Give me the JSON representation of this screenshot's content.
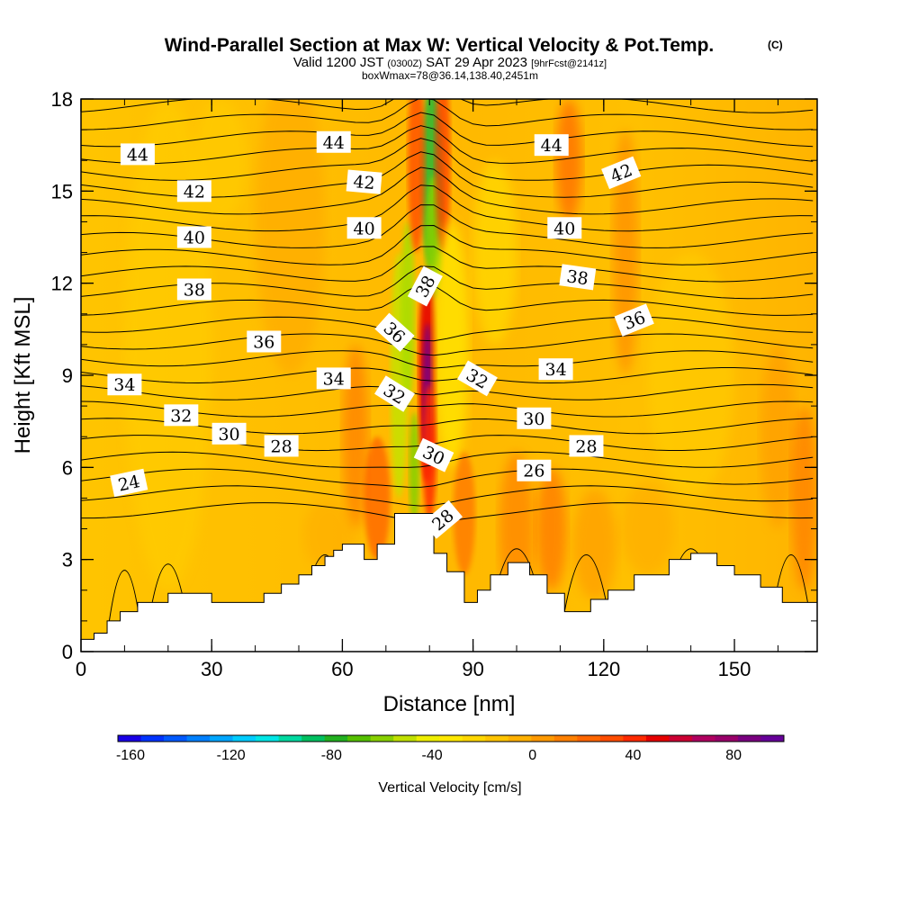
{
  "chart_data": {
    "type": "heatmap",
    "title": "Wind-Parallel Section at Max W: Vertical Velocity & Pot.Temp.",
    "title_mark": "(C)",
    "subtitle_main_a": "Valid 1200 JST",
    "subtitle_small_a": "(0300Z)",
    "subtitle_main_b": "SAT 29 Apr 2023",
    "subtitle_small_b": "[9hrFcst@2141z]",
    "subtitle2": "boxWmax=78@36.14,138.40,2451m",
    "xlabel": "Distance [nm]",
    "ylabel": "Height [Kft MSL]",
    "xlim": [
      0,
      169
    ],
    "ylim": [
      0,
      18
    ],
    "x_ticks": [
      "0",
      "30",
      "60",
      "90",
      "120",
      "150"
    ],
    "y_ticks": [
      "0",
      "3",
      "6",
      "9",
      "12",
      "15",
      "18"
    ],
    "colorbar": {
      "label": "Vertical Velocity [cm/s]",
      "range": [
        -165,
        100
      ],
      "tick_labels": [
        "-160",
        "-120",
        "-80",
        "-40",
        "0",
        "40",
        "80"
      ],
      "colors": [
        "#1a00e6",
        "#0033ff",
        "#0059ff",
        "#0080ff",
        "#00a6ff",
        "#00ccff",
        "#00e6e6",
        "#00d9a0",
        "#00c060",
        "#22b020",
        "#55c000",
        "#88d000",
        "#c0e000",
        "#eeee00",
        "#ffe800",
        "#ffd700",
        "#ffc400",
        "#ffb000",
        "#ff9900",
        "#ff8000",
        "#ff6600",
        "#ff4d00",
        "#ff2a00",
        "#e60000",
        "#cc0033",
        "#b00060",
        "#99006a",
        "#7a0080",
        "#660099"
      ]
    },
    "theta_contour_labels": [
      {
        "text": "44",
        "x": 13,
        "y": 16.2,
        "rot": 0
      },
      {
        "text": "44",
        "x": 58,
        "y": 16.6,
        "rot": 0
      },
      {
        "text": "44",
        "x": 108,
        "y": 16.5,
        "rot": 0
      },
      {
        "text": "42",
        "x": 26,
        "y": 15.0,
        "rot": 0
      },
      {
        "text": "42",
        "x": 65,
        "y": 15.3,
        "rot": 5
      },
      {
        "text": "42",
        "x": 124,
        "y": 15.6,
        "rot": -22
      },
      {
        "text": "40",
        "x": 26,
        "y": 13.5,
        "rot": 0
      },
      {
        "text": "40",
        "x": 65,
        "y": 13.8,
        "rot": 0
      },
      {
        "text": "40",
        "x": 111,
        "y": 13.8,
        "rot": 0
      },
      {
        "text": "38",
        "x": 26,
        "y": 11.8,
        "rot": 0
      },
      {
        "text": "38",
        "x": 79,
        "y": 11.9,
        "rot": -62
      },
      {
        "text": "38",
        "x": 114,
        "y": 12.2,
        "rot": 8
      },
      {
        "text": "36",
        "x": 42,
        "y": 10.1,
        "rot": 0
      },
      {
        "text": "36",
        "x": 72,
        "y": 10.4,
        "rot": 42
      },
      {
        "text": "36",
        "x": 127,
        "y": 10.8,
        "rot": -22
      },
      {
        "text": "34",
        "x": 10,
        "y": 8.7,
        "rot": 0
      },
      {
        "text": "34",
        "x": 58,
        "y": 8.9,
        "rot": 0
      },
      {
        "text": "34",
        "x": 109,
        "y": 9.2,
        "rot": 0
      },
      {
        "text": "32",
        "x": 23,
        "y": 7.7,
        "rot": 0
      },
      {
        "text": "32",
        "x": 72,
        "y": 8.4,
        "rot": 32
      },
      {
        "text": "32",
        "x": 91,
        "y": 8.9,
        "rot": 30
      },
      {
        "text": "30",
        "x": 34,
        "y": 7.1,
        "rot": 0
      },
      {
        "text": "30",
        "x": 81,
        "y": 6.4,
        "rot": 25
      },
      {
        "text": "30",
        "x": 104,
        "y": 7.6,
        "rot": 0
      },
      {
        "text": "28",
        "x": 46,
        "y": 6.7,
        "rot": 0
      },
      {
        "text": "28",
        "x": 83,
        "y": 4.3,
        "rot": -40
      },
      {
        "text": "28",
        "x": 116,
        "y": 6.7,
        "rot": 0
      },
      {
        "text": "26",
        "x": 104,
        "y": 5.9,
        "rot": 0
      },
      {
        "text": "24",
        "x": 11,
        "y": 5.5,
        "rot": -12
      }
    ]
  }
}
